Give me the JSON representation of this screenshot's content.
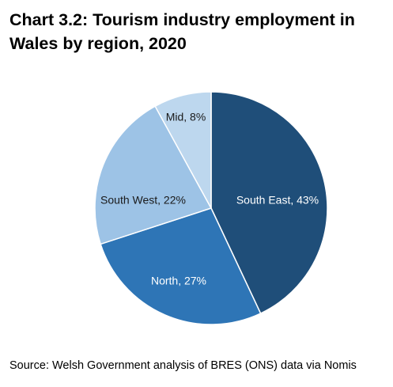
{
  "chart_data": {
    "type": "pie",
    "title": "Chart 3.2: Tourism industry employment in Wales by region, 2020",
    "slices": [
      {
        "label": "South East, 43%",
        "value": 43,
        "color": "#1f4e79",
        "label_color": "#ffffff"
      },
      {
        "label": "North, 27%",
        "value": 27,
        "color": "#2e75b6",
        "label_color": "#ffffff"
      },
      {
        "label": "South West, 22%",
        "value": 22,
        "color": "#9dc3e6",
        "label_color": "#1a1a1a"
      },
      {
        "label": "Mid, 8%",
        "value": 8,
        "color": "#bdd7ee",
        "label_color": "#1a1a1a"
      }
    ],
    "start_angle_deg": 0,
    "direction": "clockwise",
    "legend": "none"
  },
  "source": "Source: Welsh Government analysis of BRES (ONS) data via Nomis"
}
